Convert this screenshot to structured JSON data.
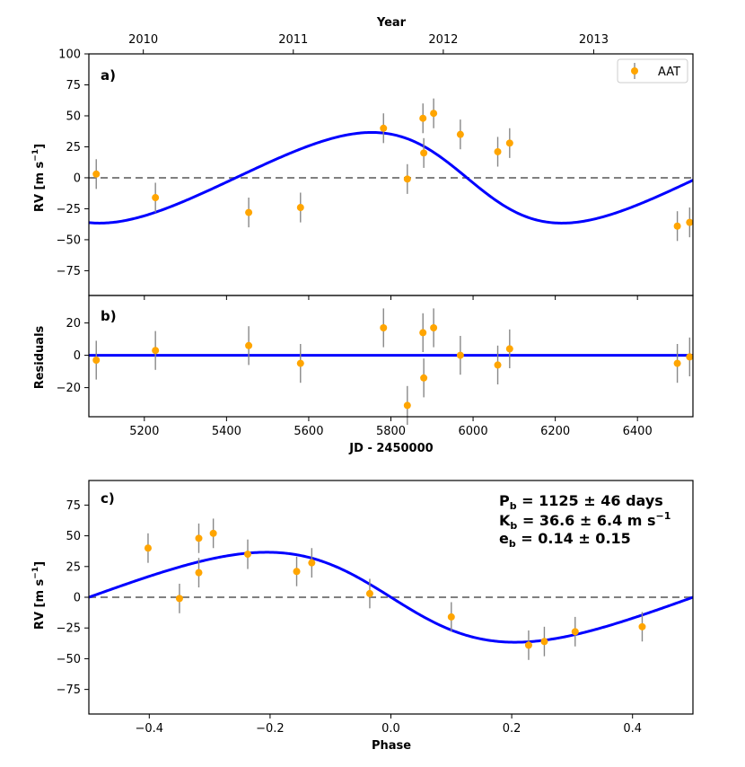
{
  "chart_data": [
    {
      "panel": "a",
      "type": "scatter",
      "label": "a)",
      "xlabel": "JD - 2450000",
      "ylabel": "RV [m s",
      "ylabel_sup": "−1",
      "ylabel_close": "]",
      "xlim": [
        5065,
        6535
      ],
      "ylim": [
        -95,
        100
      ],
      "yticks": [
        -75,
        -50,
        -25,
        0,
        25,
        50,
        75,
        100
      ],
      "top_axis": {
        "label": "Year",
        "ticks": [
          {
            "jd": 5197.5,
            "label": "2010"
          },
          {
            "jd": 5562.5,
            "label": "2011"
          },
          {
            "jd": 5927.5,
            "label": "2012"
          },
          {
            "jd": 6293.5,
            "label": "2013"
          }
        ]
      },
      "legend": {
        "label": "AAT",
        "position": "top-right"
      },
      "colors": {
        "points": "#FFA500",
        "errorbars": "#888888",
        "model": "#0000FF",
        "zero": "#808080"
      },
      "model": {
        "P": 1125,
        "K": 36.6,
        "e": 0.14,
        "omega_deg": 90,
        "T_peri": 5985
      },
      "points": [
        {
          "jd": 5083,
          "rv": 3,
          "err": 12
        },
        {
          "jd": 5227,
          "rv": -16,
          "err": 12
        },
        {
          "jd": 5454,
          "rv": -28,
          "err": 12
        },
        {
          "jd": 5580,
          "rv": -24,
          "err": 12
        },
        {
          "jd": 5782,
          "rv": 40,
          "err": 12
        },
        {
          "jd": 5840,
          "rv": -1,
          "err": 12
        },
        {
          "jd": 5878,
          "rv": 48,
          "err": 12
        },
        {
          "jd": 5880,
          "rv": 20,
          "err": 12
        },
        {
          "jd": 5904,
          "rv": 52,
          "err": 12
        },
        {
          "jd": 5969,
          "rv": 35,
          "err": 12
        },
        {
          "jd": 6060,
          "rv": 21,
          "err": 12
        },
        {
          "jd": 6089,
          "rv": 28,
          "err": 12
        },
        {
          "jd": 6497,
          "rv": -39,
          "err": 12
        },
        {
          "jd": 6527,
          "rv": -36,
          "err": 12
        }
      ]
    },
    {
      "panel": "b",
      "type": "scatter",
      "label": "b)",
      "xlabel": "JD - 2450000",
      "ylabel": "Residuals",
      "xlim": [
        5065,
        6535
      ],
      "ylim": [
        -38,
        37
      ],
      "xticks": [
        5200,
        5400,
        5600,
        5800,
        6000,
        6200,
        6400
      ],
      "yticks": [
        -20,
        0,
        20
      ],
      "points": [
        {
          "jd": 5083,
          "res": -3,
          "err": 12
        },
        {
          "jd": 5227,
          "res": 3,
          "err": 12
        },
        {
          "jd": 5454,
          "res": 6,
          "err": 12
        },
        {
          "jd": 5580,
          "res": -5,
          "err": 12
        },
        {
          "jd": 5782,
          "res": 17,
          "err": 12
        },
        {
          "jd": 5840,
          "res": -31,
          "err": 12
        },
        {
          "jd": 5878,
          "res": 14,
          "err": 12
        },
        {
          "jd": 5880,
          "res": -14,
          "err": 12
        },
        {
          "jd": 5904,
          "res": 17,
          "err": 12
        },
        {
          "jd": 5969,
          "res": 0,
          "err": 12
        },
        {
          "jd": 6060,
          "res": -6,
          "err": 12
        },
        {
          "jd": 6089,
          "res": 4,
          "err": 12
        },
        {
          "jd": 6497,
          "res": -5,
          "err": 12
        },
        {
          "jd": 6527,
          "res": -1,
          "err": 12
        }
      ]
    },
    {
      "panel": "c",
      "type": "scatter",
      "label": "c)",
      "xlabel": "Phase",
      "ylabel": "RV [m s",
      "ylabel_sup": "−1",
      "ylabel_close": "]",
      "xlim": [
        -0.5,
        0.5
      ],
      "ylim": [
        -95,
        95
      ],
      "xticks": [
        -0.4,
        -0.2,
        0.0,
        0.2,
        0.4
      ],
      "xtick_labels": [
        "−0.4",
        "−0.2",
        "0.0",
        "0.2",
        "0.4"
      ],
      "yticks": [
        -75,
        -50,
        -25,
        0,
        25,
        50,
        75
      ],
      "points": [
        {
          "phase": -0.402,
          "rv": 40,
          "err": 12
        },
        {
          "phase": -0.35,
          "rv": -1,
          "err": 12
        },
        {
          "phase": -0.318,
          "rv": 48,
          "err": 12
        },
        {
          "phase": -0.318,
          "rv": 20,
          "err": 12
        },
        {
          "phase": -0.294,
          "rv": 52,
          "err": 12
        },
        {
          "phase": -0.237,
          "rv": 35,
          "err": 12
        },
        {
          "phase": -0.156,
          "rv": 21,
          "err": 12
        },
        {
          "phase": -0.131,
          "rv": 28,
          "err": 12
        },
        {
          "phase": -0.035,
          "rv": 3,
          "err": 12
        },
        {
          "phase": 0.1,
          "rv": -16,
          "err": 12
        },
        {
          "phase": 0.228,
          "rv": -39,
          "err": 12
        },
        {
          "phase": 0.254,
          "rv": -36,
          "err": 12
        },
        {
          "phase": 0.305,
          "rv": -28,
          "err": 12
        },
        {
          "phase": 0.416,
          "rv": -24,
          "err": 12
        }
      ]
    }
  ],
  "params": {
    "line1": {
      "sym": "P",
      "sub": "b",
      "rest": " = 1125 ± 46 days"
    },
    "line2": {
      "sym": "K",
      "sub": "b",
      "rest": " = 36.6 ± 6.4 m s",
      "sup": "−1"
    },
    "line3": {
      "sym": "e",
      "sub": "b",
      "rest": " = 0.14 ± 0.15"
    }
  }
}
